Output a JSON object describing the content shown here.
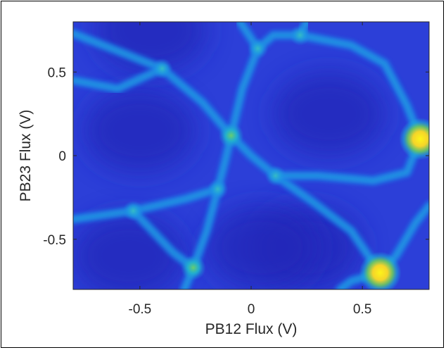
{
  "chart_data": {
    "type": "heatmap",
    "title": "",
    "xlabel": "PB12 Flux (V)",
    "ylabel": "PB23 Flux (V)",
    "xlim": [
      -0.8,
      0.8
    ],
    "ylim": [
      -0.8,
      0.8
    ],
    "x_ticks": [
      -0.5,
      0,
      0.5
    ],
    "x_tick_labels": [
      "-0.5",
      "0",
      "0.5"
    ],
    "y_ticks": [
      -0.5,
      0,
      0.5
    ],
    "y_tick_labels": [
      "-0.5",
      "0",
      "0.5"
    ],
    "colormap": "parula",
    "grid": false,
    "legend": "none",
    "colorbar": false,
    "bright_peaks": [
      {
        "x": 0.76,
        "y": 0.1,
        "intensity": 1.0
      },
      {
        "x": 0.58,
        "y": -0.7,
        "intensity": 1.0
      },
      {
        "x": -0.26,
        "y": -0.67,
        "intensity": 0.55
      },
      {
        "x": -0.09,
        "y": 0.12,
        "intensity": 0.45
      },
      {
        "x": -0.15,
        "y": -0.2,
        "intensity": 0.4
      },
      {
        "x": 0.03,
        "y": 0.64,
        "intensity": 0.35
      },
      {
        "x": 0.22,
        "y": 0.72,
        "intensity": 0.35
      },
      {
        "x": 0.11,
        "y": -0.12,
        "intensity": 0.35
      },
      {
        "x": -0.53,
        "y": -0.33,
        "intensity": 0.3
      },
      {
        "x": -0.4,
        "y": 0.52,
        "intensity": 0.25
      }
    ],
    "ridges": [
      [
        [
          -0.8,
          0.73
        ],
        [
          -0.55,
          0.6
        ],
        [
          -0.4,
          0.52
        ],
        [
          -0.22,
          0.32
        ],
        [
          -0.09,
          0.12
        ],
        [
          0.0,
          0.0
        ],
        [
          0.11,
          -0.12
        ],
        [
          0.28,
          -0.28
        ],
        [
          0.45,
          -0.45
        ],
        [
          0.58,
          -0.7
        ]
      ],
      [
        [
          -0.09,
          0.12
        ],
        [
          -0.12,
          -0.05
        ],
        [
          -0.15,
          -0.2
        ],
        [
          -0.3,
          -0.26
        ],
        [
          -0.53,
          -0.33
        ],
        [
          -0.8,
          -0.38
        ]
      ],
      [
        [
          -0.15,
          -0.2
        ],
        [
          -0.2,
          -0.45
        ],
        [
          -0.26,
          -0.67
        ],
        [
          -0.3,
          -0.8
        ]
      ],
      [
        [
          -0.09,
          0.12
        ],
        [
          -0.04,
          0.4
        ],
        [
          0.03,
          0.64
        ],
        [
          0.1,
          0.72
        ],
        [
          0.22,
          0.72
        ],
        [
          0.45,
          0.66
        ],
        [
          0.6,
          0.55
        ],
        [
          0.7,
          0.3
        ],
        [
          0.76,
          0.1
        ],
        [
          0.7,
          -0.1
        ],
        [
          0.55,
          -0.15
        ],
        [
          0.3,
          -0.12
        ],
        [
          0.11,
          -0.12
        ]
      ],
      [
        [
          0.76,
          0.1
        ],
        [
          0.8,
          0.14
        ]
      ],
      [
        [
          0.58,
          -0.7
        ],
        [
          0.65,
          -0.6
        ],
        [
          0.74,
          -0.4
        ],
        [
          0.8,
          -0.3
        ]
      ],
      [
        [
          0.58,
          -0.7
        ],
        [
          0.45,
          -0.75
        ],
        [
          0.4,
          -0.8
        ]
      ],
      [
        [
          -0.26,
          -0.67
        ],
        [
          -0.35,
          -0.58
        ],
        [
          -0.53,
          -0.33
        ]
      ],
      [
        [
          -0.8,
          0.45
        ],
        [
          -0.6,
          0.4
        ],
        [
          -0.4,
          0.52
        ]
      ],
      [
        [
          0.03,
          0.64
        ],
        [
          -0.05,
          0.8
        ]
      ],
      [
        [
          0.22,
          0.72
        ],
        [
          0.25,
          0.8
        ]
      ]
    ]
  }
}
